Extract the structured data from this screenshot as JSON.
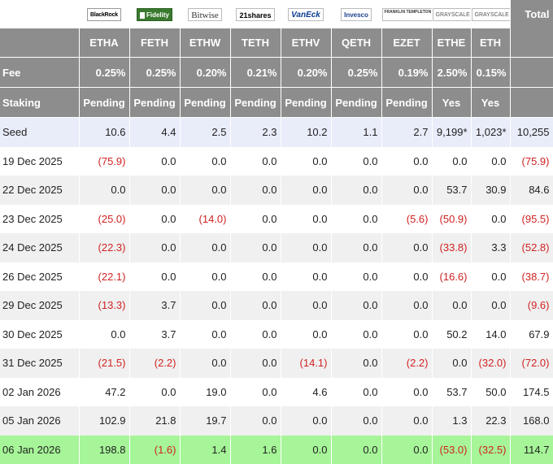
{
  "header": {
    "total_label": "Total",
    "logos": [
      {
        "icon": "blackrock-logo",
        "text": "BlackRock"
      },
      {
        "icon": "fidelity-logo",
        "text": "Fidelity"
      },
      {
        "icon": "bitwise-logo",
        "text": "Bitwise"
      },
      {
        "icon": "21shares-logo",
        "text": "21shares"
      },
      {
        "icon": "vaneck-logo",
        "text": "VanEck"
      },
      {
        "icon": "invesco-logo",
        "text": "Invesco"
      },
      {
        "icon": "franklin-templeton-logo",
        "text": "FRANKLIN TEMPLETON"
      },
      {
        "icon": "grayscale-logo",
        "text": "GRAYSCALE"
      },
      {
        "icon": "grayscale-logo",
        "text": "GRAYSCALE"
      }
    ],
    "tickers": [
      "ETHA",
      "FETH",
      "ETHW",
      "TETH",
      "ETHV",
      "QETH",
      "EZET",
      "ETHE",
      "ETH"
    ]
  },
  "fee": {
    "label": "Fee",
    "values": [
      "0.25%",
      "0.25%",
      "0.20%",
      "0.21%",
      "0.20%",
      "0.25%",
      "0.19%",
      "2.50%",
      "0.15%"
    ]
  },
  "staking": {
    "label": "Staking",
    "values": [
      "Pending",
      "Pending",
      "Pending",
      "Pending",
      "Pending",
      "Pending",
      "Pending",
      "Yes",
      "Yes"
    ]
  },
  "rows": [
    {
      "label": "Seed",
      "values": [
        "10.6",
        "4.4",
        "2.5",
        "2.3",
        "10.2",
        "1.1",
        "2.7",
        "9,199*",
        "1,023*",
        "10,255"
      ]
    },
    {
      "label": "19 Dec 2025",
      "values": [
        "(75.9)",
        "0.0",
        "0.0",
        "0.0",
        "0.0",
        "0.0",
        "0.0",
        "0.0",
        "0.0",
        "(75.9)"
      ]
    },
    {
      "label": "22 Dec 2025",
      "values": [
        "0.0",
        "0.0",
        "0.0",
        "0.0",
        "0.0",
        "0.0",
        "0.0",
        "53.7",
        "30.9",
        "84.6"
      ]
    },
    {
      "label": "23 Dec 2025",
      "values": [
        "(25.0)",
        "0.0",
        "(14.0)",
        "0.0",
        "0.0",
        "0.0",
        "(5.6)",
        "(50.9)",
        "0.0",
        "(95.5)"
      ]
    },
    {
      "label": "24 Dec 2025",
      "values": [
        "(22.3)",
        "0.0",
        "0.0",
        "0.0",
        "0.0",
        "0.0",
        "0.0",
        "(33.8)",
        "3.3",
        "(52.8)"
      ]
    },
    {
      "label": "26 Dec 2025",
      "values": [
        "(22.1)",
        "0.0",
        "0.0",
        "0.0",
        "0.0",
        "0.0",
        "0.0",
        "(16.6)",
        "0.0",
        "(38.7)"
      ]
    },
    {
      "label": "29 Dec 2025",
      "values": [
        "(13.3)",
        "3.7",
        "0.0",
        "0.0",
        "0.0",
        "0.0",
        "0.0",
        "0.0",
        "0.0",
        "(9.6)"
      ]
    },
    {
      "label": "30 Dec 2025",
      "values": [
        "0.0",
        "3.7",
        "0.0",
        "0.0",
        "0.0",
        "0.0",
        "0.0",
        "50.2",
        "14.0",
        "67.9"
      ]
    },
    {
      "label": "31 Dec 2025",
      "values": [
        "(21.5)",
        "(2.2)",
        "0.0",
        "0.0",
        "(14.1)",
        "0.0",
        "(2.2)",
        "0.0",
        "(32.0)",
        "(72.0)"
      ]
    },
    {
      "label": "02 Jan 2026",
      "values": [
        "47.2",
        "0.0",
        "19.0",
        "0.0",
        "4.6",
        "0.0",
        "0.0",
        "53.7",
        "50.0",
        "174.5"
      ]
    },
    {
      "label": "05 Jan 2026",
      "values": [
        "102.9",
        "21.8",
        "19.7",
        "0.0",
        "0.0",
        "0.0",
        "0.0",
        "1.3",
        "22.3",
        "168.0"
      ]
    },
    {
      "label": "06 Jan 2026",
      "values": [
        "198.8",
        "(1.6)",
        "1.4",
        "1.6",
        "0.0",
        "0.0",
        "0.0",
        "(53.0)",
        "(32.5)",
        "114.7"
      ]
    }
  ],
  "colors": {
    "header_bg": "#8d8d8d",
    "negative": "#d12222",
    "seed_bg": "#e9ecf9",
    "alt_bg": "#f0f0f0",
    "today_bg": "#a6f598"
  }
}
